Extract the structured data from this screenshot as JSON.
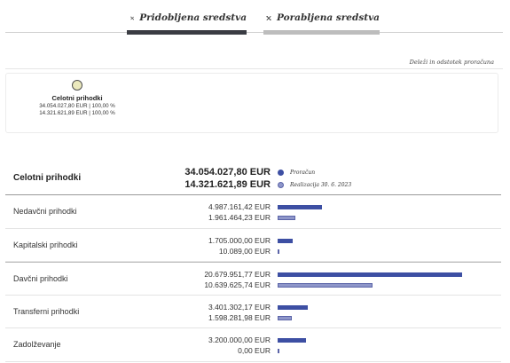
{
  "tabs": [
    {
      "label": "Pridobljena sredstva",
      "active": true
    },
    {
      "label": "Porabljena sredstva",
      "active": false
    }
  ],
  "deleg_link": "Deleži in odstotek proračuna",
  "tree": {
    "node": {
      "title": "Celotni prihodki",
      "line1": "34.054.027,80 EUR | 100,00 %",
      "line2": "14.321.621,89 EUR | 100,00 %"
    }
  },
  "table": {
    "header": {
      "label": "Celotni prihodki",
      "budget": "34.054.027,80 EUR",
      "realized": "14.321.621,89 EUR"
    },
    "legend": [
      {
        "label": "Proračun",
        "color": "#3d4fa3"
      },
      {
        "label": "Realizacija 30. 6. 2023",
        "color": "#8e96c9"
      }
    ],
    "rows": [
      {
        "label": "Nedavčni prihodki",
        "budget": "4.987.161,42 EUR",
        "realized": "1.961.464,23 EUR",
        "budget_value": 4987161.42,
        "realized_value": 1961464.23
      },
      {
        "label": "Kapitalski prihodki",
        "budget": "1.705.000,00 EUR",
        "realized": "10.089,00 EUR",
        "budget_value": 1705000.0,
        "realized_value": 10089.0
      },
      {
        "label": "Davčni prihodki",
        "budget": "20.679.951,77 EUR",
        "realized": "10.639.625,74 EUR",
        "budget_value": 20679951.77,
        "realized_value": 10639625.74
      },
      {
        "label": "Transferni prihodki",
        "budget": "3.401.302,17 EUR",
        "realized": "1.598.281,98 EUR",
        "budget_value": 3401302.17,
        "realized_value": 1598281.98
      },
      {
        "label": "Zadolževanje",
        "budget": "3.200.000,00 EUR",
        "realized": "0,00 EUR",
        "budget_value": 3200000.0,
        "realized_value": 0.0
      }
    ]
  },
  "colors": {
    "budget_bar": "#3d4fa3",
    "realized_bar": "#8e96c9",
    "tab_active": "#3a3c43",
    "tab_inactive": "#bdbdbd",
    "node_fill": "#ebe9bd"
  }
}
